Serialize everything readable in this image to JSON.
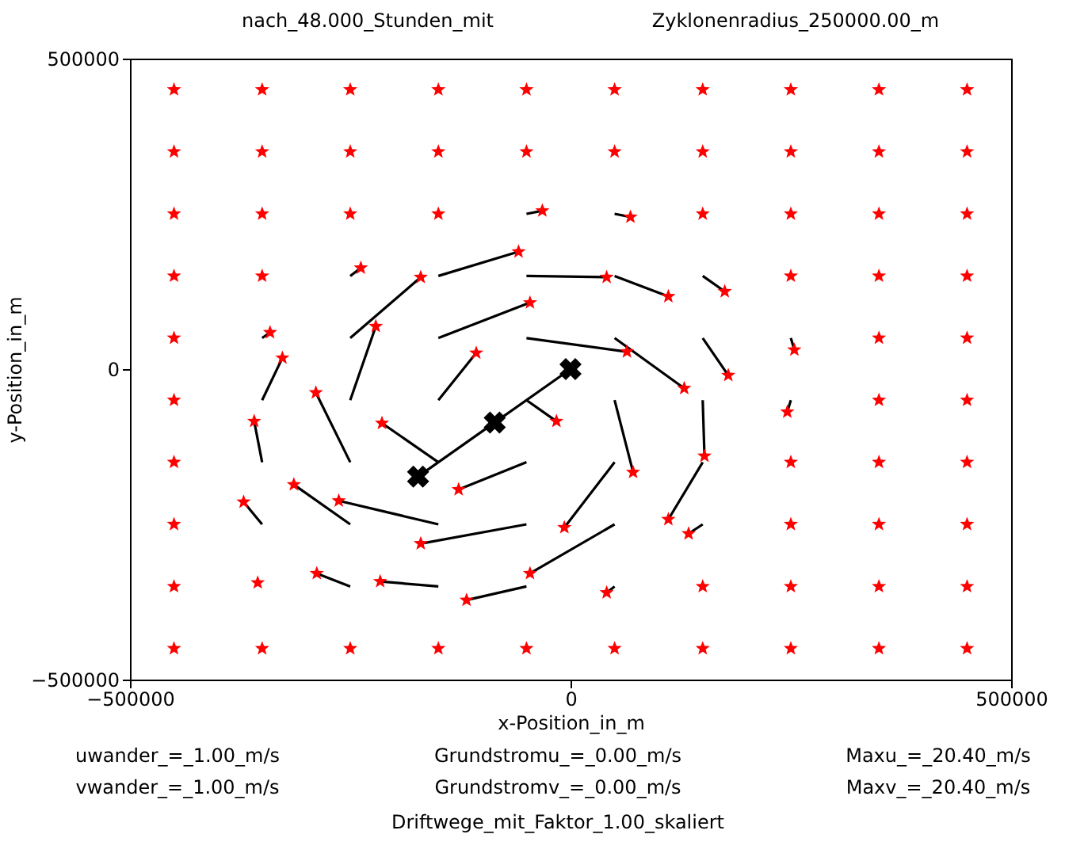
{
  "chart_data": {
    "type": "scatter",
    "title": "nach_48.000_Stunden_mit",
    "xlabel": "x-Position_in_m",
    "ylabel": "y-Position_in_m",
    "annotations": [
      "Zyklonenradius_250000.00_m",
      "uwander_=_1.00_m/s",
      "vwander_=_1.00_m/s",
      "Grundstromu_=_0.00_m/s",
      "Grundstromv_=_0.00_m/s",
      "Maxu_=_20.40_m/s",
      "Maxv_=_20.40_m/s",
      "Driftwege_mit_Faktor_1.00_skaliert"
    ],
    "xlim": [
      -500000,
      500000
    ],
    "ylim": [
      -500000,
      500000
    ],
    "xticks": [
      -500000,
      0,
      500000
    ],
    "yticks": [
      -500000,
      0,
      500000
    ],
    "grid": false,
    "series": [
      {
        "type": "line",
        "color": "#000000",
        "marker": "none",
        "x": [
          -250000,
          -238000,
          null,
          -150000,
          -59000,
          null,
          -50000,
          41000,
          null,
          50000,
          111000,
          null,
          150000,
          175000,
          null,
          -350000,
          -341000,
          null,
          -250000,
          -170000,
          null,
          -150000,
          -46000,
          null,
          -50000,
          64000,
          null,
          50000,
          129000,
          null,
          150000,
          179000,
          null,
          250000,
          254000,
          null,
          -350000,
          -327000,
          null,
          -250000,
          -221000,
          null,
          -150000,
          -107000,
          null,
          -50000,
          -16000,
          null,
          50000,
          71000,
          null,
          150000,
          152000,
          null,
          250000,
          246000,
          null,
          -350000,
          -359000,
          null,
          -250000,
          -289000,
          null,
          -150000,
          -214000,
          null,
          -50000,
          -127000,
          null,
          50000,
          -7000,
          null,
          150000,
          111000,
          null,
          -350000,
          -371000,
          null,
          -250000,
          -314000,
          null,
          -150000,
          -263000,
          null,
          -50000,
          -170000,
          null,
          50000,
          -46000,
          null,
          150000,
          134000,
          null,
          -250000,
          -288000,
          null,
          -150000,
          -216000,
          null,
          -50000,
          -118000,
          null,
          50000,
          41000,
          null,
          -50000,
          -32000,
          null,
          50000,
          68000
        ],
        "values": [
          150000,
          163000,
          null,
          150000,
          189000,
          null,
          150000,
          148000,
          null,
          150000,
          117000,
          null,
          150000,
          125000,
          null,
          50000,
          59000,
          null,
          50000,
          148000,
          null,
          50000,
          107000,
          null,
          50000,
          28000,
          null,
          50000,
          -31000,
          null,
          50000,
          -10000,
          null,
          50000,
          31000,
          null,
          -50000,
          18000,
          null,
          -50000,
          69000,
          null,
          -50000,
          26000,
          null,
          -50000,
          -84000,
          null,
          -50000,
          -166000,
          null,
          -50000,
          -140000,
          null,
          -50000,
          -69000,
          null,
          -150000,
          -84000,
          null,
          -150000,
          -38000,
          null,
          -150000,
          -87000,
          null,
          -150000,
          -194000,
          null,
          -150000,
          -255000,
          null,
          -150000,
          -242000,
          null,
          -250000,
          -214000,
          null,
          -250000,
          -186000,
          null,
          -250000,
          -212000,
          null,
          -250000,
          -281000,
          null,
          -250000,
          -329000,
          null,
          -250000,
          -265000,
          null,
          -350000,
          -329000,
          null,
          -350000,
          -342000,
          null,
          -350000,
          -372000,
          null,
          -350000,
          -360000,
          null,
          250000,
          255000,
          null,
          250000,
          245000
        ]
      },
      {
        "type": "line",
        "color": "#000000",
        "marker": "cross",
        "x": [
          0,
          -86000,
          -173000
        ],
        "values": [
          0,
          -86000,
          -173000
        ]
      },
      {
        "type": "scatter",
        "color": "#ff0000",
        "marker": "star",
        "x": [
          -450000,
          -350000,
          -250000,
          -150000,
          -50000,
          50000,
          150000,
          250000,
          350000,
          450000,
          -450000,
          -350000,
          -250000,
          -150000,
          -50000,
          50000,
          150000,
          250000,
          350000,
          450000,
          -450000,
          -350000,
          -250000,
          -150000,
          -32000,
          68000,
          150000,
          250000,
          350000,
          450000,
          -450000,
          -350000,
          -238000,
          -59000,
          41000,
          111000,
          175000,
          250000,
          350000,
          450000,
          -450000,
          -341000,
          -170000,
          -46000,
          64000,
          129000,
          179000,
          254000,
          350000,
          450000,
          -450000,
          -327000,
          -221000,
          -107000,
          -16000,
          71000,
          152000,
          246000,
          350000,
          450000,
          -450000,
          -359000,
          -289000,
          -214000,
          -127000,
          -7000,
          111000,
          250000,
          350000,
          450000,
          -450000,
          -371000,
          -314000,
          -263000,
          -170000,
          -46000,
          134000,
          250000,
          350000,
          450000,
          -450000,
          -355000,
          -288000,
          -216000,
          -118000,
          41000,
          150000,
          250000,
          350000,
          450000,
          -450000,
          -350000,
          -250000,
          -150000,
          -50000,
          50000,
          150000,
          250000,
          350000,
          450000
        ],
        "values": [
          450000,
          450000,
          450000,
          450000,
          450000,
          450000,
          450000,
          450000,
          450000,
          450000,
          350000,
          350000,
          350000,
          350000,
          350000,
          350000,
          350000,
          350000,
          350000,
          350000,
          250000,
          250000,
          250000,
          250000,
          255000,
          245000,
          250000,
          250000,
          250000,
          250000,
          150000,
          150000,
          163000,
          189000,
          148000,
          117000,
          125000,
          150000,
          150000,
          150000,
          50000,
          59000,
          148000,
          107000,
          28000,
          -31000,
          -10000,
          31000,
          50000,
          50000,
          -50000,
          18000,
          69000,
          26000,
          -84000,
          -166000,
          -140000,
          -69000,
          -50000,
          -50000,
          -150000,
          -84000,
          -38000,
          -87000,
          -194000,
          -255000,
          -242000,
          -150000,
          -150000,
          -150000,
          -250000,
          -214000,
          -186000,
          -212000,
          -281000,
          -329000,
          -265000,
          -250000,
          -250000,
          -250000,
          -350000,
          -344000,
          -329000,
          -342000,
          -372000,
          -360000,
          -350000,
          -350000,
          -350000,
          -350000,
          -450000,
          -450000,
          -450000,
          -450000,
          -450000,
          -450000,
          -450000,
          -450000,
          -450000,
          -450000
        ]
      }
    ]
  }
}
